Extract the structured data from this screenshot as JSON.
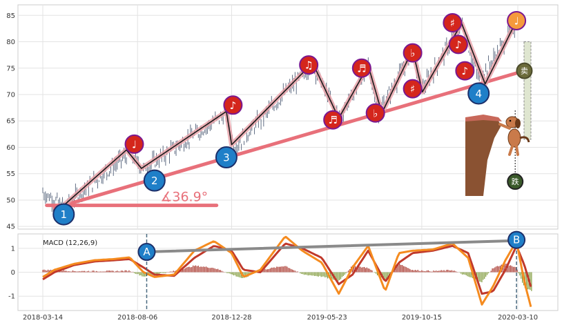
{
  "chart_data": [
    {
      "type": "line",
      "panel": "price",
      "ylim": [
        44.5,
        87
      ],
      "y_ticks": [
        45,
        50,
        55,
        60,
        65,
        70,
        75,
        80,
        85
      ],
      "grid": true,
      "price_path": [
        [
          "2018-03-14",
          51.5
        ],
        [
          "2018-04-15",
          48.8
        ],
        [
          "2018-07-25",
          59.0
        ],
        [
          "2018-08-15",
          55.8
        ],
        [
          "2018-12-20",
          66.5
        ],
        [
          "2019-01-01",
          60.0
        ],
        [
          "2019-05-01",
          75.8
        ],
        [
          "2019-06-10",
          65.5
        ],
        [
          "2019-07-25",
          75.2
        ],
        [
          "2019-08-10",
          66.5
        ],
        [
          "2019-10-01",
          78.0
        ],
        [
          "2019-10-16",
          71.0
        ],
        [
          "2019-12-15",
          83.3
        ],
        [
          "2020-01-10",
          73.0
        ],
        [
          "2020-02-01",
          76.5
        ],
        [
          "2020-03-08",
          83.5
        ]
      ],
      "zigzag": [
        [
          "2018-04-15",
          49.0
        ],
        [
          "2018-07-20",
          59.5
        ],
        [
          "2018-08-12",
          56.0
        ],
        [
          "2018-12-20",
          66.8
        ],
        [
          "2018-12-28",
          60.5
        ],
        [
          "2019-05-01",
          76.0
        ],
        [
          "2019-06-10",
          65.5
        ],
        [
          "2019-07-25",
          75.5
        ],
        [
          "2019-08-15",
          66.5
        ],
        [
          "2019-10-01",
          78.5
        ],
        [
          "2019-10-16",
          70.5
        ],
        [
          "2019-12-15",
          83.5
        ],
        [
          "2020-01-20",
          72.0
        ],
        [
          "2020-03-10",
          84.5
        ]
      ],
      "trendline": [
        [
          "2018-04-01",
          48.5
        ],
        [
          "2020-03-20",
          74.5
        ]
      ],
      "baseline": [
        [
          "2018-03-20",
          49.0
        ],
        [
          "2018-12-05",
          49.0
        ]
      ],
      "angle_label": "∡36.9°",
      "markers_numbered": [
        {
          "label": "1",
          "x": "2018-04-15",
          "y": 47.3
        },
        {
          "label": "2",
          "x": "2018-09-01",
          "y": 53.7
        },
        {
          "label": "3",
          "x": "2018-12-20",
          "y": 58.1
        },
        {
          "label": "4",
          "x": "2020-01-10",
          "y": 70.2
        }
      ],
      "markers_notes": [
        {
          "label": "♩",
          "x": "2018-08-01",
          "y": 60.6
        },
        {
          "label": "♪",
          "x": "2018-12-30",
          "y": 68.0
        },
        {
          "label": "♫",
          "x": "2019-04-25",
          "y": 75.6
        },
        {
          "label": "♬",
          "x": "2019-06-01",
          "y": 65.2
        },
        {
          "label": "♬",
          "x": "2019-07-15",
          "y": 75.0
        },
        {
          "label": "♭",
          "x": "2019-08-05",
          "y": 66.5
        },
        {
          "label": "♭",
          "x": "2019-10-01",
          "y": 77.9
        },
        {
          "label": "♯",
          "x": "2019-10-01",
          "y": 71.1
        },
        {
          "label": "♯",
          "x": "2019-12-01",
          "y": 83.6
        },
        {
          "label": "♪",
          "x": "2019-12-10",
          "y": 79.5
        },
        {
          "label": "♪",
          "x": "2019-12-20",
          "y": 74.5
        },
        {
          "label": "♩",
          "x": "2020-03-08",
          "y": 84.0
        }
      ],
      "marker_sell": {
        "label": "卖",
        "x": "2020-03-20",
        "y": 74.5
      },
      "marker_drop": {
        "label": "跌",
        "x": "2020-03-06",
        "y": 53.5
      }
    },
    {
      "type": "line",
      "panel": "macd",
      "title": "MACD (12,26,9)",
      "ylim": [
        -1.6,
        1.6
      ],
      "y_ticks": [
        -1,
        0,
        1
      ],
      "x_ticks": [
        "2018-03-14",
        "2018-08-06",
        "2018-12-28",
        "2019-05-23",
        "2019-10-15",
        "2020-03-10"
      ],
      "series": [
        {
          "name": "",
          "color": "#f58b1f",
          "points": [
            [
              "2018-03-14",
              -0.2
            ],
            [
              "2018-04-01",
              0.1
            ],
            [
              "2018-05-01",
              0.35
            ],
            [
              "2018-06-01",
              0.5
            ],
            [
              "2018-07-01",
              0.55
            ],
            [
              "2018-07-25",
              0.62
            ],
            [
              "2018-08-15",
              0.0
            ],
            [
              "2018-09-01",
              -0.2
            ],
            [
              "2018-10-01",
              -0.1
            ],
            [
              "2018-11-01",
              0.9
            ],
            [
              "2018-12-01",
              1.3
            ],
            [
              "2018-12-28",
              0.8
            ],
            [
              "2019-01-15",
              -0.2
            ],
            [
              "2019-02-10",
              0.1
            ],
            [
              "2019-03-20",
              1.5
            ],
            [
              "2019-04-15",
              0.9
            ],
            [
              "2019-05-15",
              0.4
            ],
            [
              "2019-06-10",
              -0.9
            ],
            [
              "2019-07-01",
              0.2
            ],
            [
              "2019-07-25",
              1.1
            ],
            [
              "2019-08-20",
              -0.8
            ],
            [
              "2019-09-10",
              0.8
            ],
            [
              "2019-10-01",
              0.9
            ],
            [
              "2019-11-01",
              0.95
            ],
            [
              "2019-12-01",
              1.2
            ],
            [
              "2019-12-25",
              0.6
            ],
            [
              "2020-01-15",
              -1.35
            ],
            [
              "2020-02-01",
              -0.6
            ],
            [
              "2020-02-20",
              0.5
            ],
            [
              "2020-03-08",
              1.3
            ],
            [
              "2020-03-20",
              -0.4
            ],
            [
              "2020-03-31",
              -1.55
            ]
          ]
        },
        {
          "name": "",
          "color": "#c0392b",
          "points": [
            [
              "2018-03-14",
              -0.3
            ],
            [
              "2018-04-01",
              0.0
            ],
            [
              "2018-05-01",
              0.3
            ],
            [
              "2018-06-01",
              0.45
            ],
            [
              "2018-07-01",
              0.5
            ],
            [
              "2018-07-25",
              0.55
            ],
            [
              "2018-08-15",
              0.2
            ],
            [
              "2018-09-01",
              -0.1
            ],
            [
              "2018-10-01",
              -0.15
            ],
            [
              "2018-11-01",
              0.6
            ],
            [
              "2018-12-01",
              1.1
            ],
            [
              "2018-12-28",
              0.9
            ],
            [
              "2019-01-15",
              0.1
            ],
            [
              "2019-02-10",
              0.0
            ],
            [
              "2019-03-20",
              1.2
            ],
            [
              "2019-04-15",
              1.0
            ],
            [
              "2019-05-15",
              0.6
            ],
            [
              "2019-06-10",
              -0.5
            ],
            [
              "2019-07-01",
              -0.1
            ],
            [
              "2019-07-25",
              0.9
            ],
            [
              "2019-08-20",
              -0.4
            ],
            [
              "2019-09-10",
              0.4
            ],
            [
              "2019-10-01",
              0.8
            ],
            [
              "2019-11-01",
              0.9
            ],
            [
              "2019-12-01",
              1.1
            ],
            [
              "2019-12-25",
              0.8
            ],
            [
              "2020-01-15",
              -0.9
            ],
            [
              "2020-02-01",
              -0.8
            ],
            [
              "2020-02-20",
              0.1
            ],
            [
              "2020-03-08",
              1.1
            ],
            [
              "2020-03-20",
              0.3
            ],
            [
              "2020-03-31",
              -0.7
            ]
          ]
        }
      ],
      "divergence_line": [
        [
          "2018-08-20",
          0.85
        ],
        [
          "2020-03-08",
          1.32
        ]
      ],
      "markers": [
        {
          "label": "A",
          "x": "2018-08-20",
          "y": 0.85
        },
        {
          "label": "B",
          "x": "2020-03-08",
          "y": 1.35
        }
      ],
      "vlines": [
        "2018-08-20",
        "2020-03-08"
      ]
    }
  ]
}
